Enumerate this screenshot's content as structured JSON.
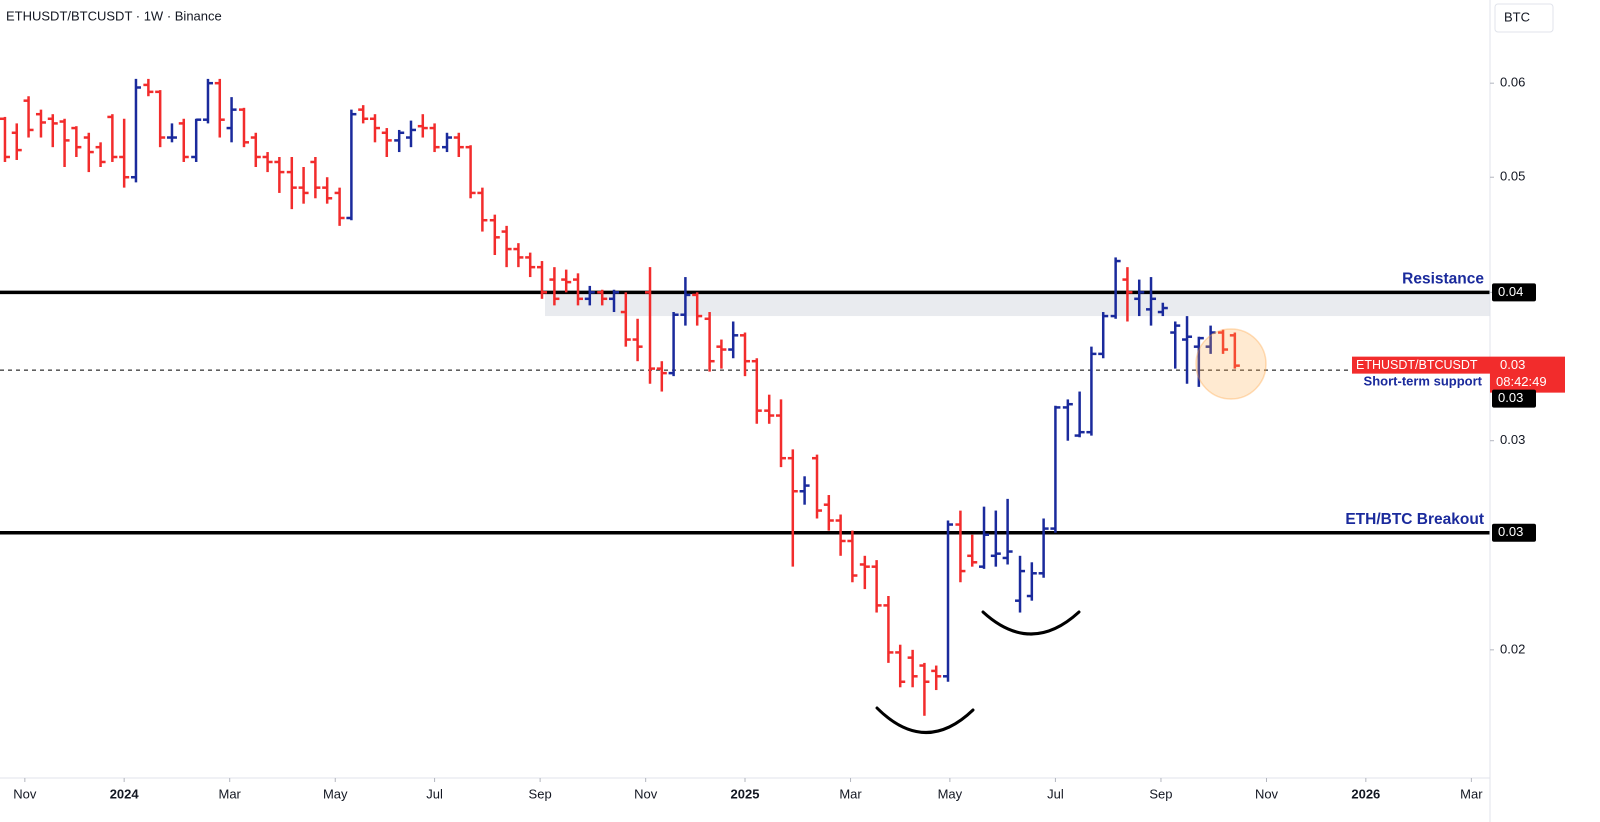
{
  "title": "ETHUSDT/BTCUSDT · 1W · Binance",
  "currency": "BTC",
  "chart_data": {
    "type": "ohlc",
    "log_scale": true,
    "up_color": "#1a2a9c",
    "down_color": "#f22c2c",
    "xlim": [
      2023.8,
      2026.2
    ],
    "xticks": [
      {
        "value": 2023.84,
        "label": "Nov"
      },
      2024,
      {
        "value": 2024.17,
        "label": "Mar"
      },
      {
        "value": 2024.34,
        "label": "May"
      },
      {
        "value": 2024.5,
        "label": "Jul"
      },
      {
        "value": 2024.67,
        "label": "Sep"
      },
      {
        "value": 2024.84,
        "label": "Nov"
      },
      2025,
      {
        "value": 2025.17,
        "label": "Mar"
      },
      {
        "value": 2025.33,
        "label": "May"
      },
      {
        "value": 2025.5,
        "label": "Jul"
      },
      {
        "value": 2025.67,
        "label": "Sep"
      },
      {
        "value": 2025.84,
        "label": "Nov"
      },
      2026,
      {
        "value": 2026.17,
        "label": "Mar"
      }
    ],
    "ylim": [
      0.0156,
      0.0705
    ],
    "yticks": [
      0.02,
      0.03,
      0.04,
      0.05,
      0.06
    ],
    "x": [
      2023.808,
      2023.827,
      2023.846,
      2023.866,
      2023.885,
      2023.904,
      2023.923,
      2023.943,
      2023.962,
      2023.981,
      2024.0,
      2024.019,
      2024.039,
      2024.058,
      2024.077,
      2024.096,
      2024.116,
      2024.135,
      2024.154,
      2024.173,
      2024.193,
      2024.212,
      2024.231,
      2024.25,
      2024.27,
      2024.289,
      2024.308,
      2024.327,
      2024.347,
      2024.366,
      2024.385,
      2024.404,
      2024.423,
      2024.443,
      2024.462,
      2024.481,
      2024.5,
      2024.52,
      2024.539,
      2024.558,
      2024.577,
      2024.597,
      2024.616,
      2024.635,
      2024.654,
      2024.673,
      2024.693,
      2024.712,
      2024.731,
      2024.75,
      2024.77,
      2024.789,
      2024.808,
      2024.827,
      2024.847,
      2024.866,
      2024.885,
      2024.904,
      2024.923,
      2024.943,
      2024.962,
      2024.981,
      2025.0,
      2025.019,
      2025.039,
      2025.058,
      2025.077,
      2025.096,
      2025.116,
      2025.135,
      2025.154,
      2025.173,
      2025.193,
      2025.212,
      2025.231,
      2025.25,
      2025.27,
      2025.289,
      2025.308,
      2025.327,
      2025.347,
      2025.366,
      2025.385,
      2025.404,
      2025.423,
      2025.443,
      2025.462,
      2025.481,
      2025.5,
      2025.52,
      2025.539,
      2025.558,
      2025.577,
      2025.597,
      2025.616,
      2025.635,
      2025.654,
      2025.673,
      2025.693,
      2025.712,
      2025.731,
      2025.75,
      2025.77,
      2025.789
    ],
    "open": [
      0.056,
      0.0545,
      0.058,
      0.0565,
      0.056,
      0.0557,
      0.055,
      0.054,
      0.053,
      0.0562,
      0.052,
      0.05,
      0.0598,
      0.059,
      0.054,
      0.0555,
      0.052,
      0.0559,
      0.06,
      0.055,
      0.057,
      0.054,
      0.052,
      0.0515,
      0.0505,
      0.049,
      0.0515,
      0.049,
      0.0485,
      0.0462,
      0.057,
      0.056,
      0.0545,
      0.0537,
      0.054,
      0.0552,
      0.055,
      0.053,
      0.054,
      0.053,
      0.0485,
      0.046,
      0.045,
      0.0435,
      0.0428,
      0.042,
      0.041,
      0.041,
      0.041,
      0.0395,
      0.04,
      0.0395,
      0.0385,
      0.0365,
      0.04,
      0.0345,
      0.0342,
      0.0383,
      0.0398,
      0.038,
      0.036,
      0.0358,
      0.0368,
      0.035,
      0.0318,
      0.0315,
      0.029,
      0.0272,
      0.029,
      0.0265,
      0.0257,
      0.0247,
      0.0236,
      0.0235,
      0.0218,
      0.0199,
      0.0197,
      0.0194,
      0.0192,
      0.019,
      0.0255,
      0.024,
      0.0235,
      0.024,
      0.0239,
      0.022,
      0.0222,
      0.0232,
      0.0253,
      0.032,
      0.0303,
      0.0305,
      0.0355,
      0.0382,
      0.041,
      0.0395,
      0.0387,
      0.0385,
      0.037,
      0.0365,
      0.036,
      0.036,
      0.037,
      0.0368
    ],
    "high": [
      0.0562,
      0.0555,
      0.0585,
      0.057,
      0.0565,
      0.056,
      0.0552,
      0.0545,
      0.0535,
      0.0565,
      0.056,
      0.0605,
      0.0605,
      0.0592,
      0.0555,
      0.056,
      0.056,
      0.0605,
      0.0605,
      0.0584,
      0.0572,
      0.0545,
      0.0525,
      0.052,
      0.052,
      0.051,
      0.052,
      0.05,
      0.049,
      0.057,
      0.0575,
      0.0565,
      0.055,
      0.0548,
      0.0558,
      0.0565,
      0.0555,
      0.0545,
      0.0545,
      0.0532,
      0.049,
      0.0465,
      0.0455,
      0.044,
      0.0432,
      0.0425,
      0.042,
      0.0418,
      0.0415,
      0.0405,
      0.0402,
      0.0402,
      0.04,
      0.038,
      0.042,
      0.035,
      0.0385,
      0.0412,
      0.04,
      0.0385,
      0.0365,
      0.0378,
      0.037,
      0.0352,
      0.0328,
      0.0325,
      0.0295,
      0.028,
      0.0292,
      0.027,
      0.026,
      0.0252,
      0.024,
      0.0238,
      0.0222,
      0.0202,
      0.02,
      0.0195,
      0.0194,
      0.0257,
      0.0262,
      0.025,
      0.0264,
      0.0262,
      0.0268,
      0.024,
      0.0237,
      0.0258,
      0.0321,
      0.0325,
      0.033,
      0.036,
      0.0385,
      0.0428,
      0.042,
      0.041,
      0.0412,
      0.0392,
      0.0378,
      0.0382,
      0.0367,
      0.0375,
      0.0372,
      0.037
    ],
    "low": [
      0.0515,
      0.0517,
      0.054,
      0.054,
      0.053,
      0.051,
      0.052,
      0.0505,
      0.051,
      0.0515,
      0.049,
      0.0495,
      0.0585,
      0.053,
      0.0535,
      0.0515,
      0.0515,
      0.0555,
      0.054,
      0.0535,
      0.053,
      0.051,
      0.0505,
      0.0485,
      0.047,
      0.0475,
      0.048,
      0.0475,
      0.0455,
      0.046,
      0.0555,
      0.0535,
      0.052,
      0.0525,
      0.053,
      0.054,
      0.0525,
      0.0525,
      0.052,
      0.048,
      0.045,
      0.043,
      0.042,
      0.042,
      0.0412,
      0.0395,
      0.039,
      0.04,
      0.039,
      0.039,
      0.039,
      0.0385,
      0.036,
      0.035,
      0.0335,
      0.033,
      0.034,
      0.0375,
      0.0375,
      0.0343,
      0.0345,
      0.0352,
      0.034,
      0.031,
      0.031,
      0.0285,
      0.0235,
      0.0265,
      0.0258,
      0.0252,
      0.024,
      0.0228,
      0.0225,
      0.0215,
      0.0195,
      0.0186,
      0.0186,
      0.0176,
      0.0185,
      0.0188,
      0.0228,
      0.0235,
      0.0234,
      0.0235,
      0.0236,
      0.0215,
      0.022,
      0.023,
      0.0251,
      0.03,
      0.0302,
      0.0303,
      0.0352,
      0.038,
      0.0378,
      0.0382,
      0.0375,
      0.0382,
      0.0345,
      0.0335,
      0.0333,
      0.0355,
      0.0355,
      0.0345
    ],
    "close": [
      0.052,
      0.0527,
      0.0548,
      0.0556,
      0.0555,
      0.0537,
      0.053,
      0.0525,
      0.0515,
      0.052,
      0.05,
      0.0595,
      0.059,
      0.054,
      0.054,
      0.052,
      0.0559,
      0.06,
      0.0559,
      0.057,
      0.0535,
      0.052,
      0.0515,
      0.0505,
      0.049,
      0.0485,
      0.049,
      0.048,
      0.0462,
      0.0565,
      0.056,
      0.055,
      0.0537,
      0.0545,
      0.0548,
      0.055,
      0.053,
      0.054,
      0.053,
      0.0485,
      0.046,
      0.0445,
      0.0435,
      0.0428,
      0.042,
      0.04,
      0.0395,
      0.0408,
      0.0395,
      0.04,
      0.0395,
      0.04,
      0.0365,
      0.036,
      0.0345,
      0.0342,
      0.0383,
      0.0398,
      0.0382,
      0.035,
      0.0358,
      0.0368,
      0.035,
      0.0318,
      0.0315,
      0.029,
      0.0272,
      0.0275,
      0.0262,
      0.0257,
      0.0247,
      0.0231,
      0.0235,
      0.0218,
      0.0199,
      0.0188,
      0.019,
      0.0188,
      0.019,
      0.0255,
      0.0233,
      0.0237,
      0.025,
      0.0241,
      0.0242,
      0.0233,
      0.0232,
      0.0253,
      0.032,
      0.0322,
      0.0305,
      0.0355,
      0.0382,
      0.0425,
      0.04,
      0.04,
      0.0395,
      0.0388,
      0.0375,
      0.0367,
      0.0366,
      0.037,
      0.0358,
      0.0347
    ],
    "resistance_zone": [
      0.0382,
      0.04
    ],
    "levels": [
      {
        "name": "Resistance",
        "value": 0.04,
        "label": "0.04",
        "style": "solid"
      },
      {
        "name": "Short-term support",
        "value": 0.0344,
        "label": "0.03",
        "style": "dashed"
      },
      {
        "name": "ETH/BTC Breakout",
        "value": 0.0251,
        "label": "0.03",
        "style": "solid"
      }
    ],
    "last_price": {
      "symbol": "ETHUSDT/BTCUSDT",
      "label": "0.03",
      "countdown": "08:42:49",
      "color": "#f22c2c"
    }
  }
}
